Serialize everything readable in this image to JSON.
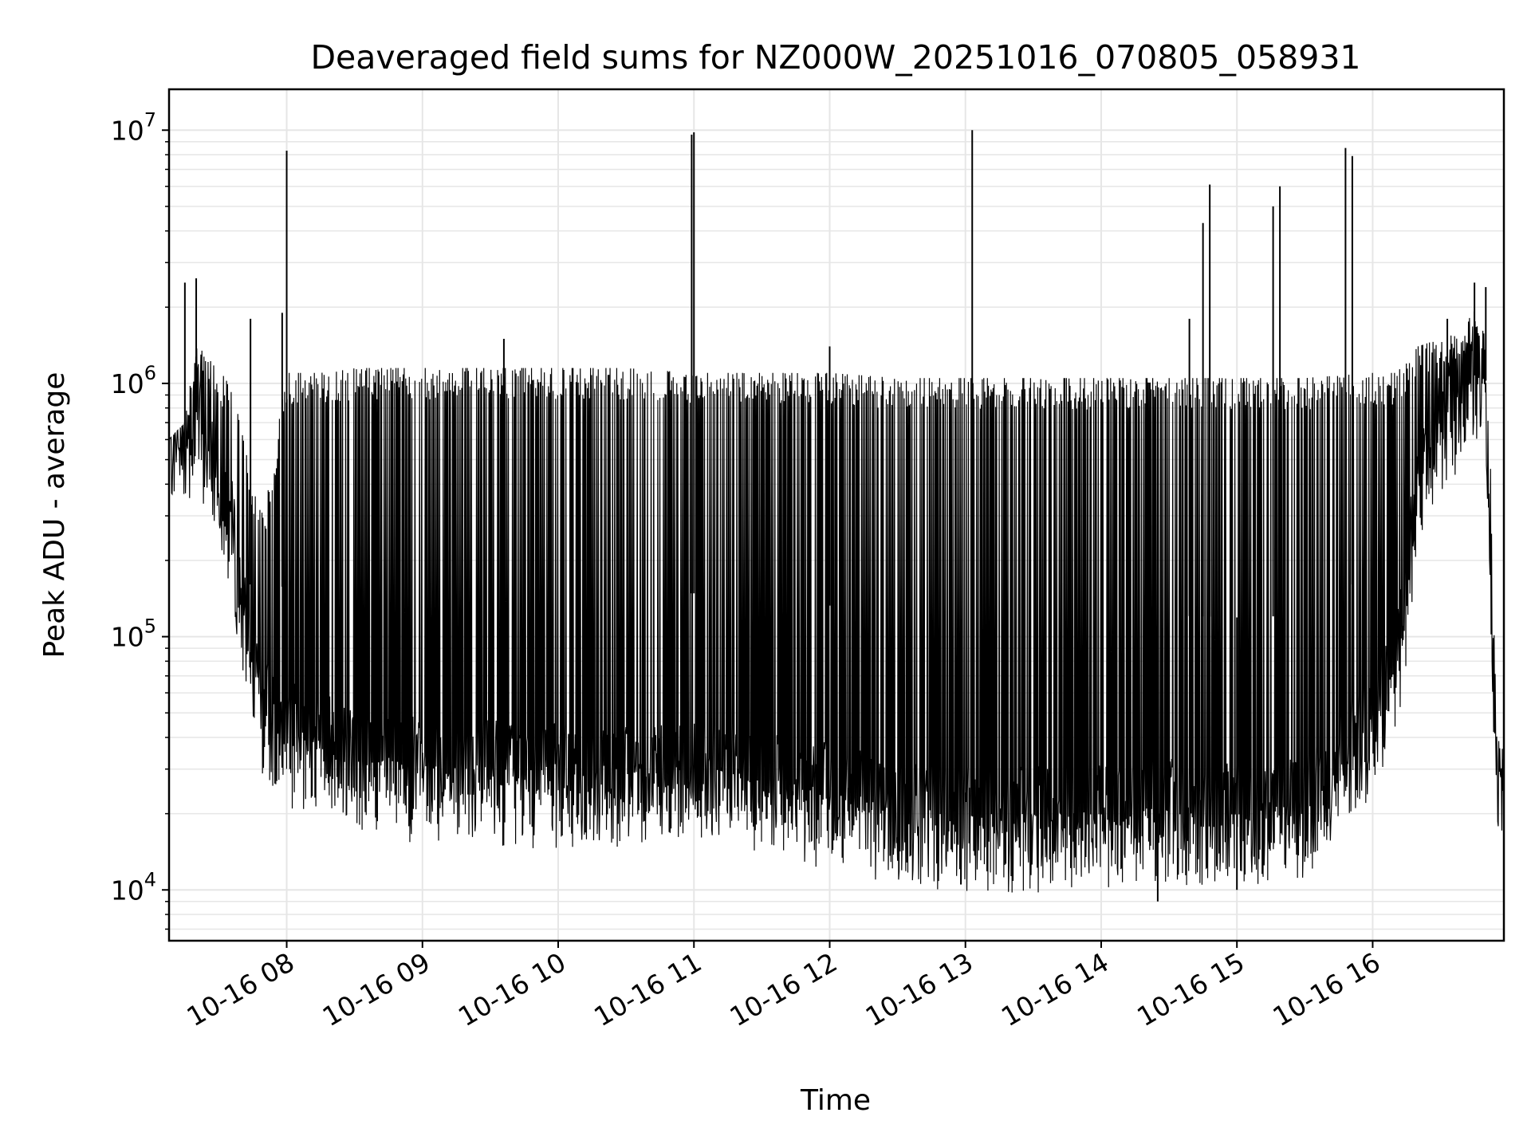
{
  "chart_data": {
    "type": "line",
    "title": "Deaveraged field sums for NZ000W_20251016_070805_058931",
    "xlabel": "Time",
    "ylabel": "Peak ADU - average",
    "yscale": "log",
    "xlim": [
      "2025-10-16 07:08",
      "2025-10-16 16:58"
    ],
    "ylim": [
      6300,
      14500000
    ],
    "grid": true,
    "grid_color": "#e6e6e6",
    "line_color": "#000000",
    "x_tick_labels": [
      "10-16 08",
      "10-16 09",
      "10-16 10",
      "10-16 11",
      "10-16 12",
      "10-16 13",
      "10-16 14",
      "10-16 15",
      "10-16 16"
    ],
    "x_ticks": [
      "2025-10-16 08:00",
      "2025-10-16 09:00",
      "2025-10-16 10:00",
      "2025-10-16 11:00",
      "2025-10-16 12:00",
      "2025-10-16 13:00",
      "2025-10-16 14:00",
      "2025-10-16 15:00",
      "2025-10-16 16:00"
    ],
    "y_ticks": [
      10000,
      100000,
      1000000,
      10000000
    ],
    "y_tick_labels": [
      {
        "base": "10",
        "exp": "4"
      },
      {
        "base": "10",
        "exp": "5"
      },
      {
        "base": "10",
        "exp": "6"
      },
      {
        "base": "10",
        "exp": "7"
      }
    ],
    "series": [
      {
        "envelope": {
          "x": [
            "2025-10-16 07:08",
            "2025-10-16 07:15",
            "2025-10-16 07:20",
            "2025-10-16 07:27",
            "2025-10-16 07:35",
            "2025-10-16 07:40",
            "2025-10-16 07:45",
            "2025-10-16 07:50",
            "2025-10-16 08:00",
            "2025-10-16 08:15",
            "2025-10-16 08:30",
            "2025-10-16 09:00",
            "2025-10-16 09:30",
            "2025-10-16 10:00",
            "2025-10-16 10:30",
            "2025-10-16 11:00",
            "2025-10-16 11:30",
            "2025-10-16 12:00",
            "2025-10-16 12:30",
            "2025-10-16 13:00",
            "2025-10-16 13:30",
            "2025-10-16 14:00",
            "2025-10-16 14:30",
            "2025-10-16 15:00",
            "2025-10-16 15:30",
            "2025-10-16 16:00",
            "2025-10-16 16:10",
            "2025-10-16 16:15",
            "2025-10-16 16:20",
            "2025-10-16 16:30",
            "2025-10-16 16:40",
            "2025-10-16 16:45",
            "2025-10-16 16:50",
            "2025-10-16 16:52",
            "2025-10-16 16:55",
            "2025-10-16 16:58"
          ],
          "high": [
            600000,
            700000,
            1500000,
            1200000,
            1000000,
            800000,
            400000,
            300000,
            1100000,
            1100000,
            1150000,
            1150000,
            1150000,
            1150000,
            1150000,
            1100000,
            1100000,
            1100000,
            1050000,
            1050000,
            1050000,
            1050000,
            1050000,
            1050000,
            1050000,
            1100000,
            1100000,
            1200000,
            1400000,
            1500000,
            1600000,
            2000000,
            1500000,
            500000,
            40000,
            35000
          ],
          "low": [
            400000,
            450000,
            500000,
            350000,
            200000,
            90000,
            50000,
            35000,
            28000,
            26000,
            22000,
            20000,
            20000,
            19000,
            19000,
            20000,
            18000,
            16000,
            14000,
            13000,
            13000,
            13500,
            14000,
            13500,
            14000,
            30000,
            50000,
            100000,
            300000,
            500000,
            600000,
            700000,
            700000,
            100000,
            22000,
            18000
          ]
        },
        "spikes": [
          {
            "x": "2025-10-16 07:15",
            "y": 2500000
          },
          {
            "x": "2025-10-16 07:20",
            "y": 2600000
          },
          {
            "x": "2025-10-16 07:44",
            "y": 1800000
          },
          {
            "x": "2025-10-16 07:58",
            "y": 1900000
          },
          {
            "x": "2025-10-16 08:00",
            "y": 8300000
          },
          {
            "x": "2025-10-16 09:36",
            "y": 1500000
          },
          {
            "x": "2025-10-16 10:59",
            "y": 9600000
          },
          {
            "x": "2025-10-16 11:00",
            "y": 9800000
          },
          {
            "x": "2025-10-16 12:00",
            "y": 1400000
          },
          {
            "x": "2025-10-16 13:03",
            "y": 10000000
          },
          {
            "x": "2025-10-16 14:39",
            "y": 1800000
          },
          {
            "x": "2025-10-16 14:45",
            "y": 4300000
          },
          {
            "x": "2025-10-16 14:48",
            "y": 6100000
          },
          {
            "x": "2025-10-16 15:16",
            "y": 5000000
          },
          {
            "x": "2025-10-16 15:19",
            "y": 6000000
          },
          {
            "x": "2025-10-16 15:48",
            "y": 8500000
          },
          {
            "x": "2025-10-16 15:51",
            "y": 7900000
          },
          {
            "x": "2025-10-16 16:33",
            "y": 1800000
          },
          {
            "x": "2025-10-16 16:45",
            "y": 2500000
          },
          {
            "x": "2025-10-16 16:50",
            "y": 2400000
          },
          {
            "x": "2025-10-16 14:25",
            "y": 9000
          },
          {
            "x": "2025-10-16 15:00",
            "y": 10000
          },
          {
            "x": "2025-10-16 12:58",
            "y": 10500
          }
        ]
      }
    ]
  }
}
